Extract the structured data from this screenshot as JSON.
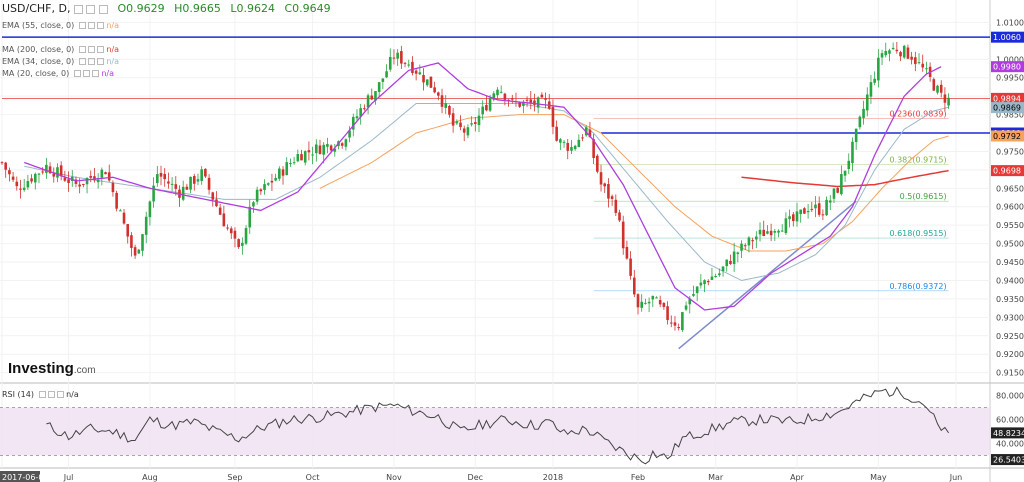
{
  "symbol": {
    "name": "USD/CHF, D,",
    "o": "O0.9629",
    "h": "H0.9665",
    "l": "L0.9624",
    "c": "C0.9649"
  },
  "indicators": [
    {
      "name": "EMA (55, close, 0)",
      "value": "n/a",
      "color": "#f5a25d"
    },
    {
      "name": "MA (200, close, 0)",
      "value": "n/a",
      "color": "#e53935"
    },
    {
      "name": "EMA (34, close, 0)",
      "value": "n/a",
      "color": "#9bb8c9"
    },
    {
      "name": "MA (20, close, 0)",
      "value": "n/a",
      "color": "#b03ce0"
    }
  ],
  "rsi_label": {
    "name": "RSI (14)",
    "value": "n/a"
  },
  "logo": {
    "text": "Investing",
    "suffix": ".com"
  },
  "chart_data": [
    {
      "type": "candlestick",
      "title": "USD/CHF, D",
      "ylim": [
        0.913,
        1.015
      ],
      "yticks": [
        {
          "v": 1.01,
          "t": "1.0100"
        },
        {
          "v": 1.0,
          "t": "1.0000"
        },
        {
          "v": 0.995,
          "t": "0.9950"
        },
        {
          "v": 0.99,
          "t": "0.9900"
        },
        {
          "v": 0.985,
          "t": "0.9850"
        },
        {
          "v": 0.975,
          "t": "0.9750"
        },
        {
          "v": 0.97,
          "t": "0.9700"
        },
        {
          "v": 0.965,
          "t": "0.9650"
        },
        {
          "v": 0.96,
          "t": "0.9600"
        },
        {
          "v": 0.955,
          "t": "0.9550"
        },
        {
          "v": 0.95,
          "t": "0.9500"
        },
        {
          "v": 0.945,
          "t": "0.9450"
        },
        {
          "v": 0.94,
          "t": "0.9400"
        },
        {
          "v": 0.935,
          "t": "0.9350"
        },
        {
          "v": 0.93,
          "t": "0.9300"
        },
        {
          "v": 0.925,
          "t": "0.9250"
        },
        {
          "v": 0.92,
          "t": "0.9200"
        },
        {
          "v": 0.915,
          "t": "0.9150"
        }
      ],
      "x_ticks": [
        {
          "i": 0,
          "t": "2017-06-05"
        },
        {
          "i": 18,
          "t": "Jul"
        },
        {
          "i": 40,
          "t": "Aug"
        },
        {
          "i": 63,
          "t": "Sep"
        },
        {
          "i": 84,
          "t": "Oct"
        },
        {
          "i": 106,
          "t": "Nov"
        },
        {
          "i": 128,
          "t": "Dec"
        },
        {
          "i": 149,
          "t": "2018"
        },
        {
          "i": 172,
          "t": "Feb"
        },
        {
          "i": 193,
          "t": "Mar"
        },
        {
          "i": 215,
          "t": "Apr"
        },
        {
          "i": 237,
          "t": "May"
        },
        {
          "i": 258,
          "t": "Jun"
        }
      ],
      "series_anchors": {
        "close": [
          [
            0,
            0.972
          ],
          [
            4,
            0.965
          ],
          [
            12,
            0.971
          ],
          [
            20,
            0.966
          ],
          [
            28,
            0.97
          ],
          [
            36,
            0.946
          ],
          [
            42,
            0.969
          ],
          [
            48,
            0.964
          ],
          [
            54,
            0.969
          ],
          [
            60,
            0.956
          ],
          [
            64,
            0.948
          ],
          [
            68,
            0.962
          ],
          [
            74,
            0.968
          ],
          [
            80,
            0.974
          ],
          [
            86,
            0.976
          ],
          [
            92,
            0.978
          ],
          [
            98,
            0.988
          ],
          [
            102,
            0.993
          ],
          [
            106,
            1.001
          ],
          [
            110,
            0.999
          ],
          [
            114,
            0.995
          ],
          [
            118,
            0.991
          ],
          [
            122,
            0.982
          ],
          [
            126,
            0.98
          ],
          [
            130,
            0.986
          ],
          [
            134,
            0.993
          ],
          [
            138,
            0.988
          ],
          [
            144,
            0.988
          ],
          [
            148,
            0.988
          ],
          [
            150,
            0.978
          ],
          [
            154,
            0.976
          ],
          [
            158,
            0.981
          ],
          [
            162,
            0.966
          ],
          [
            166,
            0.96
          ],
          [
            170,
            0.94
          ],
          [
            172,
            0.932
          ],
          [
            176,
            0.935
          ],
          [
            180,
            0.93
          ],
          [
            183,
            0.928
          ],
          [
            185,
            0.934
          ],
          [
            190,
            0.94
          ],
          [
            194,
            0.942
          ],
          [
            198,
            0.947
          ],
          [
            204,
            0.952
          ],
          [
            210,
            0.955
          ],
          [
            214,
            0.956
          ],
          [
            218,
            0.96
          ],
          [
            222,
            0.959
          ],
          [
            226,
            0.965
          ],
          [
            230,
            0.976
          ],
          [
            234,
            0.99
          ],
          [
            238,
            1.002
          ],
          [
            242,
            1.003
          ],
          [
            246,
            1.001
          ],
          [
            250,
            0.996
          ],
          [
            254,
            0.99
          ],
          [
            256,
            0.989
          ]
        ]
      },
      "seed": 7,
      "ma20": [
        [
          6,
          0.972
        ],
        [
          20,
          0.967
        ],
        [
          30,
          0.968
        ],
        [
          40,
          0.965
        ],
        [
          50,
          0.963
        ],
        [
          60,
          0.961
        ],
        [
          70,
          0.959
        ],
        [
          80,
          0.964
        ],
        [
          90,
          0.976
        ],
        [
          100,
          0.988
        ],
        [
          110,
          0.997
        ],
        [
          118,
          0.999
        ],
        [
          126,
          0.992
        ],
        [
          134,
          0.989
        ],
        [
          144,
          0.988
        ],
        [
          152,
          0.987
        ],
        [
          160,
          0.978
        ],
        [
          168,
          0.966
        ],
        [
          176,
          0.95
        ],
        [
          182,
          0.938
        ],
        [
          190,
          0.932
        ],
        [
          198,
          0.933
        ],
        [
          208,
          0.942
        ],
        [
          216,
          0.947
        ],
        [
          224,
          0.952
        ],
        [
          230,
          0.96
        ],
        [
          236,
          0.974
        ],
        [
          244,
          0.99
        ],
        [
          250,
          0.996
        ],
        [
          254,
          0.998
        ]
      ],
      "ema34": [
        [
          6,
          0.971
        ],
        [
          20,
          0.968
        ],
        [
          40,
          0.965
        ],
        [
          60,
          0.962
        ],
        [
          74,
          0.962
        ],
        [
          86,
          0.968
        ],
        [
          100,
          0.978
        ],
        [
          112,
          0.988
        ],
        [
          126,
          0.988
        ],
        [
          140,
          0.988
        ],
        [
          152,
          0.986
        ],
        [
          160,
          0.98
        ],
        [
          170,
          0.968
        ],
        [
          180,
          0.956
        ],
        [
          190,
          0.945
        ],
        [
          200,
          0.94
        ],
        [
          210,
          0.942
        ],
        [
          220,
          0.947
        ],
        [
          228,
          0.955
        ],
        [
          236,
          0.97
        ],
        [
          244,
          0.981
        ],
        [
          252,
          0.986
        ],
        [
          256,
          0.987
        ]
      ],
      "ema55": [
        [
          86,
          0.965
        ],
        [
          100,
          0.972
        ],
        [
          112,
          0.98
        ],
        [
          126,
          0.984
        ],
        [
          140,
          0.985
        ],
        [
          152,
          0.985
        ],
        [
          162,
          0.98
        ],
        [
          172,
          0.97
        ],
        [
          182,
          0.96
        ],
        [
          192,
          0.952
        ],
        [
          202,
          0.948
        ],
        [
          212,
          0.948
        ],
        [
          222,
          0.95
        ],
        [
          230,
          0.956
        ],
        [
          238,
          0.965
        ],
        [
          246,
          0.973
        ],
        [
          252,
          0.978
        ],
        [
          256,
          0.9792
        ]
      ],
      "ma200": [
        [
          200,
          0.968
        ],
        [
          214,
          0.9665
        ],
        [
          226,
          0.9655
        ],
        [
          236,
          0.966
        ],
        [
          246,
          0.968
        ],
        [
          256,
          0.9698
        ]
      ],
      "hlines": [
        {
          "v": 1.006,
          "color": "#1b2bd9",
          "label": "1.0060",
          "x0": 0
        },
        {
          "v": 0.98,
          "color": "#1b2bd9",
          "label": "0.9800",
          "x0": 162
        },
        {
          "v": 0.9894,
          "color": "#e53935",
          "label": "0.9894",
          "x0": 0
        }
      ],
      "fib": [
        {
          "v": 0.9839,
          "label": "0.236(0.9839)",
          "color": "#e53935"
        },
        {
          "v": 0.9715,
          "label": "0.382(0.9715)",
          "color": "#7cb342"
        },
        {
          "v": 0.9615,
          "label": "0.5(0.9615)",
          "color": "#43a047"
        },
        {
          "v": 0.9515,
          "label": "0.618(0.9515)",
          "color": "#26a69a"
        },
        {
          "v": 0.9372,
          "label": "0.786(0.9372)",
          "color": "#1e88e5"
        }
      ],
      "trendline": [
        [
          183,
          0.9215
        ],
        [
          231,
          0.9615
        ]
      ],
      "price_tags": [
        {
          "v": 1.006,
          "t": "1.0060",
          "bg": "#1b2bd9",
          "fg": "#fff"
        },
        {
          "v": 0.998,
          "t": "0.9980",
          "bg": "#b03ce0",
          "fg": "#fff"
        },
        {
          "v": 0.9894,
          "t": "0.9894",
          "bg": "#e53935",
          "fg": "#fff"
        },
        {
          "v": 0.9869,
          "t": "0.9869",
          "bg": "#9bb8c9",
          "fg": "#000"
        },
        {
          "v": 0.98,
          "t": "0.9800",
          "bg": "#1b2bd9",
          "fg": "#fff"
        },
        {
          "v": 0.9792,
          "t": "0.9792",
          "bg": "#f5a25d",
          "fg": "#000"
        },
        {
          "v": 0.9698,
          "t": "0.9698",
          "bg": "#e53935",
          "fg": "#fff"
        }
      ]
    },
    {
      "type": "line",
      "title": "RSI (14)",
      "ylim": [
        22,
        88
      ],
      "bands": [
        30,
        70
      ],
      "yticks": [
        {
          "v": 80,
          "t": "80.0000"
        },
        {
          "v": 60,
          "t": "60.0000"
        },
        {
          "v": 40,
          "t": "40.0000"
        }
      ],
      "tags": [
        {
          "v": 48.8234,
          "t": "48.8234",
          "bg": "#222",
          "fg": "#fff"
        },
        {
          "v": 26.5403,
          "t": "26.5403",
          "bg": "#222",
          "fg": "#fff"
        }
      ],
      "anchors": [
        [
          12,
          55
        ],
        [
          18,
          46
        ],
        [
          24,
          52
        ],
        [
          30,
          50
        ],
        [
          36,
          43
        ],
        [
          40,
          60
        ],
        [
          46,
          55
        ],
        [
          52,
          58
        ],
        [
          58,
          50
        ],
        [
          64,
          44
        ],
        [
          70,
          53
        ],
        [
          78,
          60
        ],
        [
          86,
          62
        ],
        [
          94,
          66
        ],
        [
          100,
          70
        ],
        [
          106,
          72
        ],
        [
          110,
          68
        ],
        [
          118,
          62
        ],
        [
          124,
          50
        ],
        [
          130,
          56
        ],
        [
          136,
          60
        ],
        [
          144,
          55
        ],
        [
          148,
          58
        ],
        [
          152,
          48
        ],
        [
          158,
          52
        ],
        [
          164,
          40
        ],
        [
          170,
          30
        ],
        [
          174,
          26
        ],
        [
          176,
          32
        ],
        [
          180,
          28
        ],
        [
          184,
          44
        ],
        [
          190,
          50
        ],
        [
          198,
          58
        ],
        [
          206,
          60
        ],
        [
          214,
          58
        ],
        [
          220,
          62
        ],
        [
          226,
          66
        ],
        [
          232,
          76
        ],
        [
          238,
          84
        ],
        [
          244,
          82
        ],
        [
          250,
          72
        ],
        [
          254,
          50
        ],
        [
          256,
          48.8
        ]
      ]
    }
  ]
}
